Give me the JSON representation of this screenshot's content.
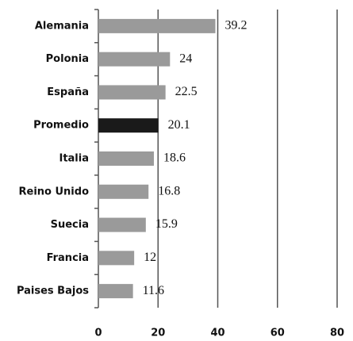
{
  "chart_data": {
    "type": "bar",
    "orientation": "horizontal",
    "categories": [
      "Alemania",
      "Polonia",
      "España",
      "Promedio",
      "Italia",
      "Reino Unido",
      "Suecia",
      "Francia",
      "Paises Bajos"
    ],
    "values": [
      39.2,
      24,
      22.5,
      20.1,
      18.6,
      16.8,
      15.9,
      12,
      11.6
    ],
    "colors": [
      "#9a9a9a",
      "#9a9a9a",
      "#9a9a9a",
      "#1a1a1a",
      "#9a9a9a",
      "#9a9a9a",
      "#9a9a9a",
      "#9a9a9a",
      "#9a9a9a"
    ],
    "xlim": [
      0,
      80
    ],
    "xticks": [
      0,
      20,
      40,
      60,
      80
    ],
    "grid": true
  }
}
